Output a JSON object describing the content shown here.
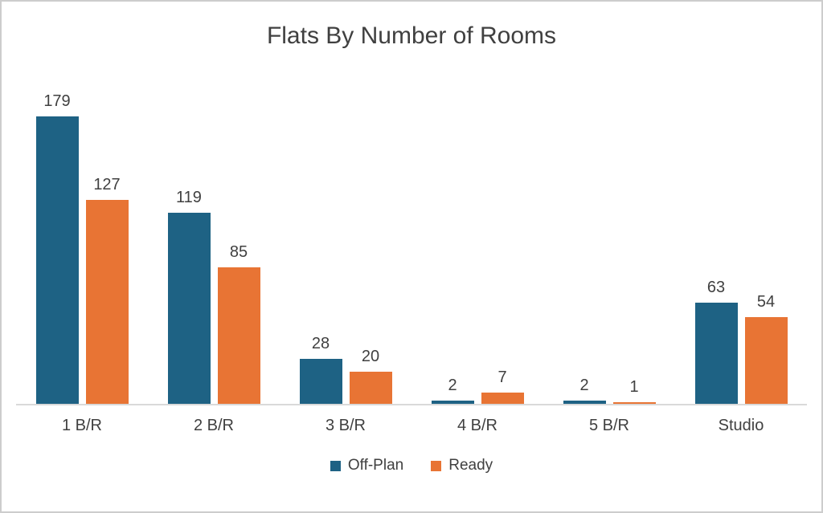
{
  "chart_data": {
    "type": "bar",
    "title": "Flats By Number of Rooms",
    "categories": [
      "1 B/R",
      "2 B/R",
      "3 B/R",
      "4 B/R",
      "5 B/R",
      "Studio"
    ],
    "series": [
      {
        "name": "Off-Plan",
        "color": "#1E6284",
        "values": [
          179,
          119,
          28,
          2,
          2,
          63
        ]
      },
      {
        "name": "Ready",
        "color": "#E87434",
        "values": [
          127,
          85,
          20,
          7,
          1,
          54
        ]
      }
    ],
    "xlabel": "",
    "ylabel": "",
    "ylim": [
      0,
      200
    ],
    "grid": false,
    "legend_position": "bottom",
    "data_labels_visible": true
  },
  "styles": {
    "text_color": "#404040",
    "axis_line_color": "#d9d9d9",
    "frame_border_color": "#cdcdcd",
    "background_color": "#ffffff"
  }
}
